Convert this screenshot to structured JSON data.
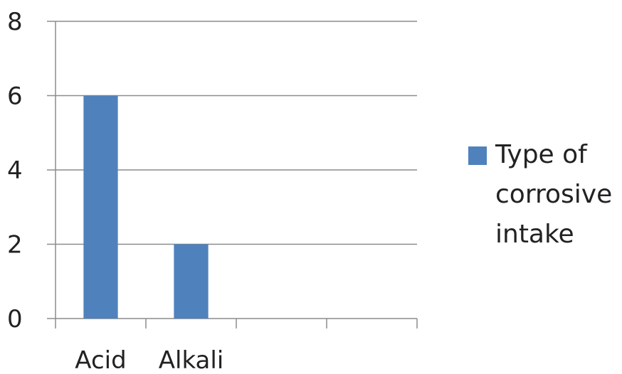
{
  "chart_data": {
    "type": "bar",
    "categories": [
      "Acid",
      "Alkali",
      "",
      ""
    ],
    "series": [
      {
        "name": "Type of corrosive intake",
        "values": [
          6,
          2,
          null,
          null
        ],
        "color": "#4F81BD"
      }
    ],
    "title": "",
    "xlabel": "",
    "ylabel": "",
    "ylim": [
      0,
      8
    ],
    "yticks": [
      "0",
      "2",
      "4",
      "6",
      "8"
    ],
    "grid": true,
    "legend_position": "right"
  },
  "legend": {
    "label": "Type of corrosive intake",
    "color": "#4F81BD"
  }
}
